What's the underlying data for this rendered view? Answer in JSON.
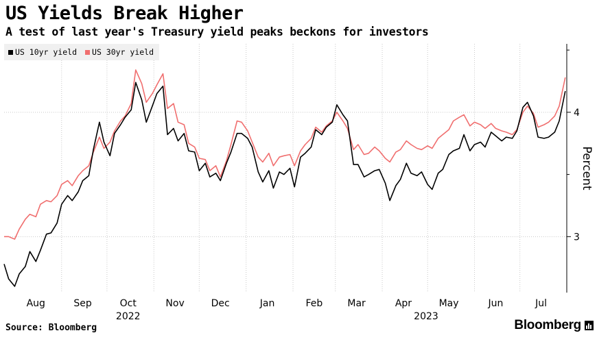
{
  "header": {
    "title": "US Yields Break Higher",
    "subtitle": "A test of last year's Treasury yield peaks beckons for investors"
  },
  "footer": {
    "source": "Source: Bloomberg",
    "brand": "Bloomberg"
  },
  "chart_data": {
    "type": "line",
    "ylabel": "Percent",
    "ylim": [
      2.55,
      4.55
    ],
    "yticks": [
      3,
      4
    ],
    "grid": true,
    "legend_position": "top-left",
    "x_range": [
      "2022-07-25",
      "2023-08-01"
    ],
    "x_month_labels": [
      {
        "date": "2022-08-15",
        "label": "Aug"
      },
      {
        "date": "2022-09-15",
        "label": "Sep"
      },
      {
        "date": "2022-10-15",
        "label": "Oct"
      },
      {
        "date": "2022-11-15",
        "label": "Nov"
      },
      {
        "date": "2022-12-15",
        "label": "Dec"
      },
      {
        "date": "2023-01-15",
        "label": "Jan"
      },
      {
        "date": "2023-02-15",
        "label": "Feb"
      },
      {
        "date": "2023-03-15",
        "label": "Mar"
      },
      {
        "date": "2023-04-15",
        "label": "Apr"
      },
      {
        "date": "2023-05-15",
        "label": "May"
      },
      {
        "date": "2023-06-15",
        "label": "Jun"
      },
      {
        "date": "2023-07-15",
        "label": "Jul"
      }
    ],
    "x_year_labels": [
      {
        "date": "2022-10-15",
        "label": "2022"
      },
      {
        "date": "2023-04-30",
        "label": "2023"
      }
    ],
    "month_grid": [
      "2022-09-01",
      "2022-10-01",
      "2022-11-01",
      "2022-12-01",
      "2023-01-01",
      "2023-02-01",
      "2023-03-01",
      "2023-04-01",
      "2023-05-01",
      "2023-06-01",
      "2023-07-01",
      "2023-08-01"
    ],
    "series": [
      {
        "name": "US 10yr yield",
        "color": "#000000",
        "points": [
          [
            "2022-07-25",
            2.78
          ],
          [
            "2022-07-28",
            2.66
          ],
          [
            "2022-08-01",
            2.6
          ],
          [
            "2022-08-04",
            2.7
          ],
          [
            "2022-08-08",
            2.76
          ],
          [
            "2022-08-11",
            2.88
          ],
          [
            "2022-08-15",
            2.8
          ],
          [
            "2022-08-18",
            2.89
          ],
          [
            "2022-08-22",
            3.02
          ],
          [
            "2022-08-25",
            3.03
          ],
          [
            "2022-08-29",
            3.11
          ],
          [
            "2022-09-01",
            3.26
          ],
          [
            "2022-09-05",
            3.33
          ],
          [
            "2022-09-08",
            3.29
          ],
          [
            "2022-09-12",
            3.36
          ],
          [
            "2022-09-15",
            3.45
          ],
          [
            "2022-09-19",
            3.49
          ],
          [
            "2022-09-22",
            3.7
          ],
          [
            "2022-09-26",
            3.92
          ],
          [
            "2022-09-29",
            3.76
          ],
          [
            "2022-10-03",
            3.65
          ],
          [
            "2022-10-06",
            3.83
          ],
          [
            "2022-10-10",
            3.9
          ],
          [
            "2022-10-13",
            3.96
          ],
          [
            "2022-10-17",
            4.02
          ],
          [
            "2022-10-20",
            4.24
          ],
          [
            "2022-10-24",
            4.1
          ],
          [
            "2022-10-27",
            3.92
          ],
          [
            "2022-10-31",
            4.05
          ],
          [
            "2022-11-03",
            4.15
          ],
          [
            "2022-11-07",
            4.21
          ],
          [
            "2022-11-10",
            3.82
          ],
          [
            "2022-11-14",
            3.87
          ],
          [
            "2022-11-17",
            3.77
          ],
          [
            "2022-11-21",
            3.83
          ],
          [
            "2022-11-24",
            3.69
          ],
          [
            "2022-11-28",
            3.68
          ],
          [
            "2022-12-01",
            3.53
          ],
          [
            "2022-12-05",
            3.59
          ],
          [
            "2022-12-08",
            3.48
          ],
          [
            "2022-12-12",
            3.51
          ],
          [
            "2022-12-15",
            3.45
          ],
          [
            "2022-12-19",
            3.59
          ],
          [
            "2022-12-22",
            3.68
          ],
          [
            "2022-12-26",
            3.83
          ],
          [
            "2022-12-29",
            3.83
          ],
          [
            "2023-01-02",
            3.79
          ],
          [
            "2023-01-05",
            3.72
          ],
          [
            "2023-01-09",
            3.52
          ],
          [
            "2023-01-12",
            3.44
          ],
          [
            "2023-01-16",
            3.53
          ],
          [
            "2023-01-19",
            3.39
          ],
          [
            "2023-01-23",
            3.52
          ],
          [
            "2023-01-26",
            3.5
          ],
          [
            "2023-01-30",
            3.55
          ],
          [
            "2023-02-02",
            3.4
          ],
          [
            "2023-02-06",
            3.64
          ],
          [
            "2023-02-09",
            3.67
          ],
          [
            "2023-02-13",
            3.72
          ],
          [
            "2023-02-16",
            3.86
          ],
          [
            "2023-02-20",
            3.82
          ],
          [
            "2023-02-23",
            3.88
          ],
          [
            "2023-02-27",
            3.92
          ],
          [
            "2023-03-02",
            4.06
          ],
          [
            "2023-03-06",
            3.98
          ],
          [
            "2023-03-09",
            3.93
          ],
          [
            "2023-03-13",
            3.58
          ],
          [
            "2023-03-16",
            3.58
          ],
          [
            "2023-03-20",
            3.48
          ],
          [
            "2023-03-23",
            3.5
          ],
          [
            "2023-03-27",
            3.53
          ],
          [
            "2023-03-30",
            3.54
          ],
          [
            "2023-04-03",
            3.43
          ],
          [
            "2023-04-06",
            3.29
          ],
          [
            "2023-04-10",
            3.41
          ],
          [
            "2023-04-13",
            3.46
          ],
          [
            "2023-04-17",
            3.59
          ],
          [
            "2023-04-20",
            3.51
          ],
          [
            "2023-04-24",
            3.49
          ],
          [
            "2023-04-27",
            3.52
          ],
          [
            "2023-05-01",
            3.42
          ],
          [
            "2023-05-04",
            3.38
          ],
          [
            "2023-05-08",
            3.51
          ],
          [
            "2023-05-11",
            3.54
          ],
          [
            "2023-05-15",
            3.66
          ],
          [
            "2023-05-18",
            3.69
          ],
          [
            "2023-05-22",
            3.71
          ],
          [
            "2023-05-25",
            3.82
          ],
          [
            "2023-05-29",
            3.69
          ],
          [
            "2023-06-01",
            3.74
          ],
          [
            "2023-06-05",
            3.76
          ],
          [
            "2023-06-08",
            3.72
          ],
          [
            "2023-06-12",
            3.84
          ],
          [
            "2023-06-15",
            3.81
          ],
          [
            "2023-06-19",
            3.77
          ],
          [
            "2023-06-22",
            3.8
          ],
          [
            "2023-06-26",
            3.79
          ],
          [
            "2023-06-29",
            3.85
          ],
          [
            "2023-07-03",
            4.04
          ],
          [
            "2023-07-06",
            4.08
          ],
          [
            "2023-07-10",
            3.97
          ],
          [
            "2023-07-13",
            3.8
          ],
          [
            "2023-07-17",
            3.79
          ],
          [
            "2023-07-20",
            3.8
          ],
          [
            "2023-07-24",
            3.84
          ],
          [
            "2023-07-27",
            3.93
          ],
          [
            "2023-07-31",
            4.17
          ]
        ]
      },
      {
        "name": "US 30yr yield",
        "color": "#f06e6e",
        "points": [
          [
            "2022-07-25",
            3.0
          ],
          [
            "2022-07-28",
            3.0
          ],
          [
            "2022-08-01",
            2.98
          ],
          [
            "2022-08-04",
            3.06
          ],
          [
            "2022-08-08",
            3.14
          ],
          [
            "2022-08-11",
            3.18
          ],
          [
            "2022-08-15",
            3.16
          ],
          [
            "2022-08-18",
            3.26
          ],
          [
            "2022-08-22",
            3.29
          ],
          [
            "2022-08-25",
            3.28
          ],
          [
            "2022-08-29",
            3.33
          ],
          [
            "2022-09-01",
            3.42
          ],
          [
            "2022-09-05",
            3.45
          ],
          [
            "2022-09-08",
            3.41
          ],
          [
            "2022-09-12",
            3.49
          ],
          [
            "2022-09-15",
            3.53
          ],
          [
            "2022-09-19",
            3.57
          ],
          [
            "2022-09-22",
            3.68
          ],
          [
            "2022-09-26",
            3.8
          ],
          [
            "2022-09-29",
            3.71
          ],
          [
            "2022-10-03",
            3.76
          ],
          [
            "2022-10-06",
            3.85
          ],
          [
            "2022-10-10",
            3.93
          ],
          [
            "2022-10-13",
            3.97
          ],
          [
            "2022-10-17",
            4.07
          ],
          [
            "2022-10-20",
            4.34
          ],
          [
            "2022-10-24",
            4.23
          ],
          [
            "2022-10-27",
            4.08
          ],
          [
            "2022-10-31",
            4.15
          ],
          [
            "2022-11-03",
            4.22
          ],
          [
            "2022-11-07",
            4.31
          ],
          [
            "2022-11-10",
            4.03
          ],
          [
            "2022-11-14",
            4.07
          ],
          [
            "2022-11-17",
            3.92
          ],
          [
            "2022-11-21",
            3.9
          ],
          [
            "2022-11-24",
            3.75
          ],
          [
            "2022-11-28",
            3.72
          ],
          [
            "2022-12-01",
            3.63
          ],
          [
            "2022-12-05",
            3.62
          ],
          [
            "2022-12-08",
            3.53
          ],
          [
            "2022-12-12",
            3.57
          ],
          [
            "2022-12-15",
            3.48
          ],
          [
            "2022-12-19",
            3.61
          ],
          [
            "2022-12-22",
            3.74
          ],
          [
            "2022-12-26",
            3.93
          ],
          [
            "2022-12-29",
            3.92
          ],
          [
            "2023-01-02",
            3.85
          ],
          [
            "2023-01-05",
            3.76
          ],
          [
            "2023-01-09",
            3.64
          ],
          [
            "2023-01-12",
            3.6
          ],
          [
            "2023-01-16",
            3.67
          ],
          [
            "2023-01-19",
            3.57
          ],
          [
            "2023-01-23",
            3.64
          ],
          [
            "2023-01-26",
            3.65
          ],
          [
            "2023-01-30",
            3.66
          ],
          [
            "2023-02-02",
            3.57
          ],
          [
            "2023-02-06",
            3.69
          ],
          [
            "2023-02-09",
            3.74
          ],
          [
            "2023-02-13",
            3.79
          ],
          [
            "2023-02-16",
            3.88
          ],
          [
            "2023-02-20",
            3.84
          ],
          [
            "2023-02-23",
            3.89
          ],
          [
            "2023-02-27",
            3.93
          ],
          [
            "2023-03-02",
            4.0
          ],
          [
            "2023-03-06",
            3.93
          ],
          [
            "2023-03-09",
            3.87
          ],
          [
            "2023-03-13",
            3.7
          ],
          [
            "2023-03-16",
            3.74
          ],
          [
            "2023-03-20",
            3.66
          ],
          [
            "2023-03-23",
            3.67
          ],
          [
            "2023-03-27",
            3.72
          ],
          [
            "2023-03-30",
            3.69
          ],
          [
            "2023-04-03",
            3.63
          ],
          [
            "2023-04-06",
            3.6
          ],
          [
            "2023-04-10",
            3.68
          ],
          [
            "2023-04-13",
            3.7
          ],
          [
            "2023-04-17",
            3.77
          ],
          [
            "2023-04-20",
            3.74
          ],
          [
            "2023-04-24",
            3.71
          ],
          [
            "2023-04-27",
            3.7
          ],
          [
            "2023-05-01",
            3.73
          ],
          [
            "2023-05-04",
            3.71
          ],
          [
            "2023-05-08",
            3.79
          ],
          [
            "2023-05-11",
            3.82
          ],
          [
            "2023-05-15",
            3.86
          ],
          [
            "2023-05-18",
            3.93
          ],
          [
            "2023-05-22",
            3.96
          ],
          [
            "2023-05-25",
            3.98
          ],
          [
            "2023-05-29",
            3.89
          ],
          [
            "2023-06-01",
            3.92
          ],
          [
            "2023-06-05",
            3.9
          ],
          [
            "2023-06-08",
            3.87
          ],
          [
            "2023-06-12",
            3.91
          ],
          [
            "2023-06-15",
            3.87
          ],
          [
            "2023-06-19",
            3.85
          ],
          [
            "2023-06-22",
            3.84
          ],
          [
            "2023-06-26",
            3.82
          ],
          [
            "2023-06-29",
            3.86
          ],
          [
            "2023-07-03",
            4.0
          ],
          [
            "2023-07-06",
            4.05
          ],
          [
            "2023-07-10",
            3.99
          ],
          [
            "2023-07-13",
            3.88
          ],
          [
            "2023-07-17",
            3.9
          ],
          [
            "2023-07-20",
            3.92
          ],
          [
            "2023-07-24",
            3.97
          ],
          [
            "2023-07-27",
            4.05
          ],
          [
            "2023-07-31",
            4.28
          ]
        ]
      }
    ]
  }
}
